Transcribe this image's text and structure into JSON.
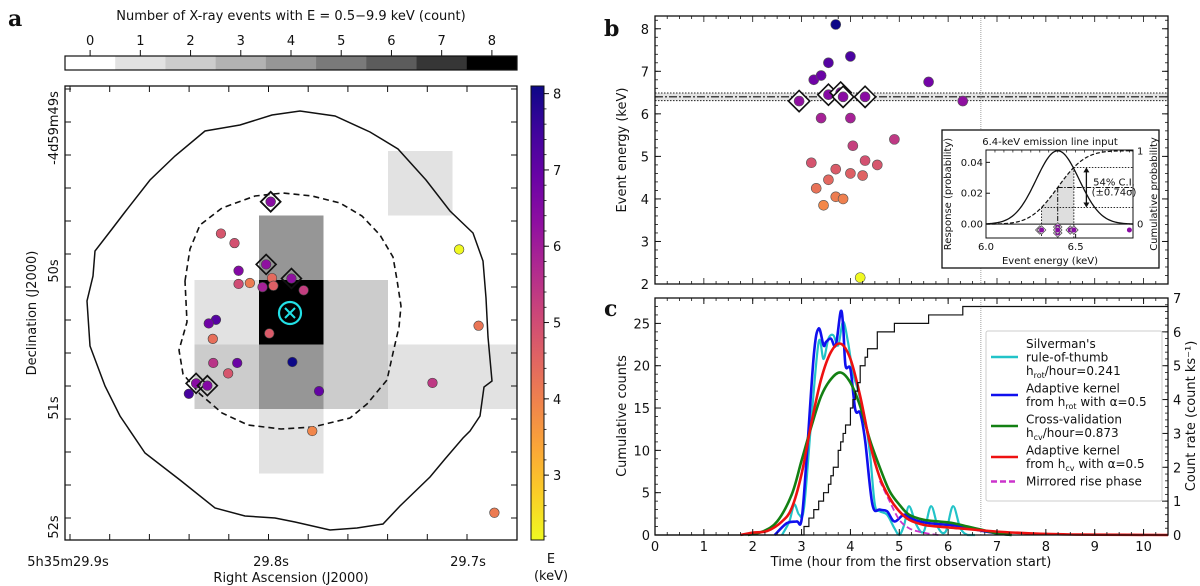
{
  "panels": {
    "a": "a",
    "b": "b",
    "c": "c"
  },
  "chart_data": [
    {
      "id": "a",
      "type": "heatmap",
      "title": "Number of X-ray events with E = 0.5−9.9 keV (count)",
      "xlabel": "Right Ascension (J2000)",
      "ylabel": "Declination (J2000)",
      "xticks": [
        "5h35m29.9s",
        "29.8s",
        "29.7s"
      ],
      "yticks": [
        "-4d59m49s",
        "50s",
        "51s",
        "52s"
      ],
      "count_colorbar": {
        "ticks": [
          "0",
          "1",
          "2",
          "3",
          "4",
          "5",
          "6",
          "7",
          "8"
        ],
        "range": [
          0,
          8
        ]
      },
      "energy_colorbar": {
        "label": "E\n(keV)",
        "label_line1": "E",
        "label_line2": "(keV)",
        "ticks": [
          "3",
          "4",
          "5",
          "6",
          "7",
          "8"
        ],
        "range": [
          2.15,
          8.1
        ]
      },
      "grid_cols": 7,
      "grid_rows": 7,
      "cells": [
        {
          "col": 4,
          "row": 0,
          "count": 1
        },
        {
          "col": 2,
          "row": 1,
          "count": 4
        },
        {
          "col": 6,
          "row": 1,
          "count": 1
        },
        {
          "col": 6,
          "row": 2,
          "count": 1
        },
        {
          "col": 1,
          "row": 2,
          "count": 1
        },
        {
          "col": 2,
          "row": 2,
          "count": 8
        },
        {
          "col": 3,
          "row": 2,
          "count": 2
        },
        {
          "col": 1,
          "row": 3,
          "count": 2
        },
        {
          "col": 2,
          "row": 3,
          "count": 4
        },
        {
          "col": 3,
          "row": 3,
          "count": 2
        },
        {
          "col": 4,
          "row": 3,
          "count": 1
        },
        {
          "col": 5,
          "row": 3,
          "count": 1
        },
        {
          "col": 2,
          "row": 4,
          "count": 1
        },
        {
          "col": 6,
          "row": 5,
          "count": 1
        }
      ],
      "events": [
        {
          "x": 0.455,
          "y": 0.255,
          "e": 6.4,
          "fe": true
        },
        {
          "x": 0.455,
          "y": 0.255,
          "e": 6.4,
          "fe": true
        },
        {
          "x": 0.345,
          "y": 0.325,
          "e": 4.8
        },
        {
          "x": 0.375,
          "y": 0.346,
          "e": 4.9
        },
        {
          "x": 0.445,
          "y": 0.393,
          "e": 6.3,
          "fe": true
        },
        {
          "x": 0.384,
          "y": 0.407,
          "e": 6.5
        },
        {
          "x": 0.501,
          "y": 0.424,
          "e": 6.3,
          "fe": true
        },
        {
          "x": 0.384,
          "y": 0.436,
          "e": 5.0
        },
        {
          "x": 0.409,
          "y": 0.434,
          "e": 4.1
        },
        {
          "x": 0.437,
          "y": 0.443,
          "e": 5.9
        },
        {
          "x": 0.458,
          "y": 0.423,
          "e": 4.4
        },
        {
          "x": 0.461,
          "y": 0.44,
          "e": 4.6
        },
        {
          "x": 0.528,
          "y": 0.45,
          "e": 5.3
        },
        {
          "x": 0.334,
          "y": 0.515,
          "e": 7.2
        },
        {
          "x": 0.318,
          "y": 0.523,
          "e": 6.8
        },
        {
          "x": 0.327,
          "y": 0.557,
          "e": 4.3
        },
        {
          "x": 0.452,
          "y": 0.545,
          "e": 4.7
        },
        {
          "x": 0.328,
          "y": 0.61,
          "e": 5.5
        },
        {
          "x": 0.381,
          "y": 0.61,
          "e": 6.9
        },
        {
          "x": 0.503,
          "y": 0.608,
          "e": 8.1
        },
        {
          "x": 0.361,
          "y": 0.633,
          "e": 4.8
        },
        {
          "x": 0.29,
          "y": 0.655,
          "e": 6.4,
          "fe": true
        },
        {
          "x": 0.315,
          "y": 0.66,
          "e": 6.5,
          "fe": true
        },
        {
          "x": 0.274,
          "y": 0.678,
          "e": 7.4
        },
        {
          "x": 0.562,
          "y": 0.672,
          "e": 7.0
        },
        {
          "x": 0.813,
          "y": 0.654,
          "e": 5.4
        },
        {
          "x": 0.872,
          "y": 0.36,
          "e": 2.15
        },
        {
          "x": 0.915,
          "y": 0.528,
          "e": 4.2
        },
        {
          "x": 0.547,
          "y": 0.76,
          "e": 3.9
        },
        {
          "x": 0.95,
          "y": 0.94,
          "e": 4.1
        }
      ],
      "source_marker": "cyan circle with x"
    },
    {
      "id": "b",
      "type": "scatter",
      "ylabel": "Event energy (keV)",
      "ylim": [
        2,
        8.3
      ],
      "xlim": [
        0,
        10.5
      ],
      "yticks": [
        "2",
        "3",
        "4",
        "5",
        "6",
        "7",
        "8"
      ],
      "line_energy": 6.4,
      "line_band": [
        6.31,
        6.49
      ],
      "observation_end_hour": 6.67,
      "events": [
        {
          "t": 2.95,
          "e": 6.3,
          "fe": true
        },
        {
          "t": 3.55,
          "e": 6.45,
          "fe": true
        },
        {
          "t": 3.8,
          "e": 6.5,
          "fe": true
        },
        {
          "t": 3.85,
          "e": 6.4,
          "fe": true
        },
        {
          "t": 4.3,
          "e": 6.4,
          "fe": true
        },
        {
          "t": 3.25,
          "e": 6.8
        },
        {
          "t": 3.4,
          "e": 6.9
        },
        {
          "t": 3.55,
          "e": 7.2
        },
        {
          "t": 3.7,
          "e": 8.1
        },
        {
          "t": 4.0,
          "e": 7.35
        },
        {
          "t": 3.4,
          "e": 5.9
        },
        {
          "t": 4.0,
          "e": 5.9
        },
        {
          "t": 4.05,
          "e": 5.25
        },
        {
          "t": 4.9,
          "e": 5.4
        },
        {
          "t": 3.2,
          "e": 4.85
        },
        {
          "t": 3.7,
          "e": 4.7
        },
        {
          "t": 3.55,
          "e": 4.45
        },
        {
          "t": 4.0,
          "e": 4.6
        },
        {
          "t": 4.25,
          "e": 4.55
        },
        {
          "t": 4.3,
          "e": 4.9
        },
        {
          "t": 4.55,
          "e": 4.8
        },
        {
          "t": 3.3,
          "e": 4.25
        },
        {
          "t": 3.7,
          "e": 4.05
        },
        {
          "t": 3.85,
          "e": 4.0
        },
        {
          "t": 3.45,
          "e": 3.85
        },
        {
          "t": 4.2,
          "e": 2.15
        },
        {
          "t": 5.6,
          "e": 6.75
        },
        {
          "t": 6.3,
          "e": 6.3
        }
      ],
      "inset": {
        "title": "6.4-keV emission line input",
        "xlabel": "Event energy (keV)",
        "ylabel_left": "Response (probability)",
        "ylabel_right": "Cumulative probability",
        "xticks": [
          "6.0",
          "6.5"
        ],
        "yticks_left": [
          "0.00",
          "0.02",
          "0.04"
        ],
        "yticks_right": [
          "0",
          "1"
        ],
        "xlim": [
          6.0,
          6.82
        ],
        "ylim": [
          -0.009,
          0.048
        ],
        "peak_energy": 6.4,
        "sigma_keV": 0.12,
        "ci_label": "54% C.I.",
        "ci_sub": "(±0.74σ)",
        "ci_bounds": [
          6.31,
          6.49
        ],
        "points": [
          6.3,
          6.31,
          6.4,
          6.4,
          6.4,
          6.47,
          6.49,
          6.8
        ]
      }
    },
    {
      "id": "c",
      "type": "line",
      "xlabel": "Time (hour from the first observation start)",
      "ylabel": "Cumulative counts",
      "ylabel_right": "Count rate (count ks⁻¹)",
      "xlim": [
        0,
        10.5
      ],
      "ylim": [
        0,
        28
      ],
      "ylim_right": [
        0,
        7
      ],
      "xticks": [
        "0",
        "1",
        "2",
        "3",
        "4",
        "5",
        "6",
        "7",
        "8",
        "9",
        "10"
      ],
      "yticks": [
        "0",
        "5",
        "10",
        "15",
        "20",
        "25"
      ],
      "yticks_right": [
        "0",
        "1",
        "2",
        "3",
        "4",
        "5",
        "6",
        "7"
      ],
      "observation_end_hour": 6.67,
      "cumulative": {
        "x": [
          0,
          2.95,
          3.05,
          3.15,
          3.25,
          3.35,
          3.45,
          3.55,
          3.6,
          3.65,
          3.75,
          3.8,
          3.85,
          3.9,
          4.0,
          4.05,
          4.1,
          4.15,
          4.2,
          4.3,
          4.35,
          4.55,
          4.9,
          5.6,
          6.3,
          10.5
        ],
        "y": [
          0,
          0,
          1,
          2,
          3,
          4,
          5,
          6,
          7,
          8,
          10,
          11,
          12,
          13,
          15,
          16,
          17,
          18,
          20,
          21,
          22,
          24,
          25,
          26,
          27,
          27
        ]
      },
      "series": [
        {
          "name": "Silverman's rule-of-thumb h_rot/hour=0.241",
          "color": "#22c3c8",
          "dash": false,
          "x": [
            2.6,
            2.75,
            2.85,
            2.95,
            3.05,
            3.2,
            3.35,
            3.45,
            3.55,
            3.65,
            3.75,
            3.85,
            3.95,
            4.05,
            4.15,
            4.3,
            4.4,
            4.5,
            4.6,
            4.75,
            4.9,
            5.0,
            5.1,
            5.2,
            5.35,
            5.5,
            5.65,
            5.8,
            5.95,
            6.1,
            6.25,
            6.4,
            6.55
          ],
          "y": [
            0,
            0.4,
            0.9,
            0.6,
            0.8,
            3.4,
            5.7,
            5.2,
            5.8,
            5.9,
            5.6,
            6.3,
            5.7,
            4.8,
            4.3,
            3.4,
            2.4,
            0.9,
            0.7,
            0.6,
            0.2,
            0,
            0.3,
            0.85,
            0.3,
            0.1,
            0.85,
            0.2,
            0.1,
            0.85,
            0.2,
            0,
            0
          ]
        },
        {
          "name": "Adaptive kernel from h_rot with α=0.5",
          "color": "#1010ee",
          "dash": false,
          "x": [
            2.45,
            2.7,
            2.9,
            3.0,
            3.1,
            3.25,
            3.35,
            3.45,
            3.5,
            3.6,
            3.7,
            3.8,
            3.85,
            3.9,
            4.0,
            4.1,
            4.2,
            4.3,
            4.45,
            4.6,
            4.75,
            4.9,
            5.1,
            5.3,
            5.6,
            6.0,
            6.3,
            6.6,
            7.0,
            7.3
          ],
          "y": [
            0,
            0.35,
            0.4,
            0.45,
            2.2,
            5.3,
            6.1,
            5.6,
            5.7,
            5.8,
            5.6,
            6.6,
            6.2,
            5.0,
            4.9,
            3.7,
            3.6,
            2.8,
            0.9,
            0.75,
            0.7,
            0.4,
            0.6,
            0.45,
            0.35,
            0.3,
            0.25,
            0.15,
            0.05,
            0
          ]
        },
        {
          "name": "Cross-validation h_cv/hour=0.873",
          "color": "#138013",
          "dash": false,
          "x": [
            1.9,
            2.2,
            2.5,
            2.8,
            3.0,
            3.2,
            3.4,
            3.6,
            3.8,
            4.0,
            4.2,
            4.4,
            4.6,
            4.8,
            5.0,
            5.2,
            5.5,
            5.8,
            6.1,
            6.4,
            6.7,
            7.0,
            7.3
          ],
          "y": [
            0,
            0.1,
            0.4,
            1.2,
            2.2,
            3.2,
            4.1,
            4.6,
            4.8,
            4.5,
            3.8,
            2.8,
            2.0,
            1.3,
            0.9,
            0.6,
            0.45,
            0.4,
            0.35,
            0.25,
            0.15,
            0.05,
            0
          ]
        },
        {
          "name": "Adaptive kernel from h_cv with α=0.5",
          "color": "#ee1111",
          "dash": false,
          "x": [
            1.75,
            2.0,
            2.3,
            2.6,
            2.8,
            3.0,
            3.2,
            3.4,
            3.6,
            3.8,
            4.0,
            4.2,
            4.4,
            4.6,
            4.8,
            5.0,
            5.2,
            5.5,
            5.8,
            6.2,
            6.6,
            7.0,
            7.5,
            8.0,
            8.5,
            9.0,
            10.5
          ],
          "y": [
            0,
            0.07,
            0.12,
            0.4,
            0.8,
            1.8,
            3.3,
            4.6,
            5.4,
            5.65,
            5.2,
            4.1,
            2.7,
            1.7,
            1.1,
            0.7,
            0.45,
            0.3,
            0.25,
            0.2,
            0.15,
            0.1,
            0.06,
            0.03,
            0.015,
            0.01,
            0
          ]
        },
        {
          "name": "Mirrored rise phase",
          "color": "#cc33cc",
          "dash": true,
          "x": [
            4.6,
            4.8,
            5.0,
            5.2,
            5.4,
            5.6,
            5.8
          ],
          "y": [
            1.6,
            1.0,
            0.45,
            0.2,
            0.1,
            0.04,
            0
          ]
        }
      ],
      "legend": {
        "position": "center-right",
        "entries": [
          {
            "lines": [
              "Silverman's",
              "rule-of-thumb",
              "h_rot/hour=0.241"
            ]
          },
          {
            "lines": [
              "Adaptive kernel",
              "from h_rot with α=0.5"
            ]
          },
          {
            "lines": [
              "Cross-validation",
              "h_cv/hour=0.873"
            ]
          },
          {
            "lines": [
              "Adaptive kernel",
              "from h_cv with α=0.5"
            ]
          },
          {
            "lines": [
              "Mirrored rise phase"
            ]
          }
        ]
      }
    }
  ]
}
